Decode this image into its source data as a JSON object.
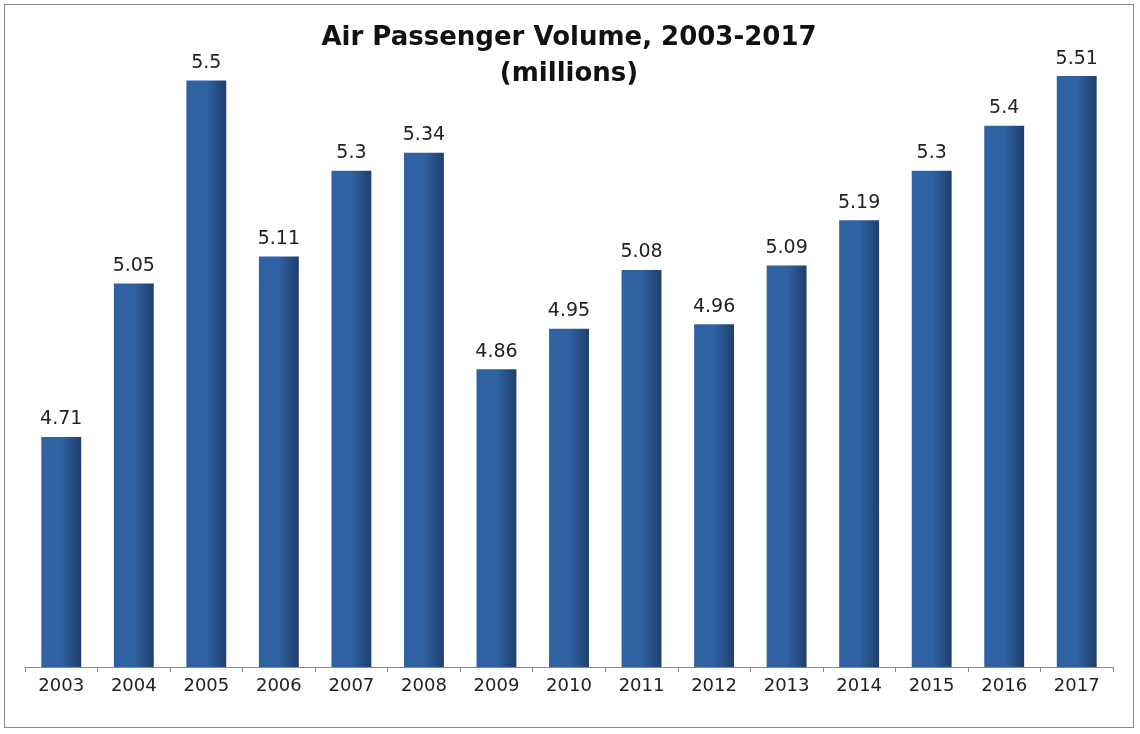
{
  "chart_data": {
    "type": "bar",
    "title": "Air Passenger Volume, 2003-2017\n(millions)",
    "categories": [
      "2003",
      "2004",
      "2005",
      "2006",
      "2007",
      "2008",
      "2009",
      "2010",
      "2011",
      "2012",
      "2013",
      "2014",
      "2015",
      "2016",
      "2017"
    ],
    "values": [
      4.71,
      5.05,
      5.5,
      5.11,
      5.3,
      5.34,
      4.86,
      4.95,
      5.08,
      4.96,
      5.09,
      5.19,
      5.3,
      5.4,
      5.51
    ],
    "color": "#2f62a3",
    "ylim": [
      4.2,
      5.51
    ],
    "data_labels": true,
    "tick_labels": "x",
    "grid": false
  }
}
